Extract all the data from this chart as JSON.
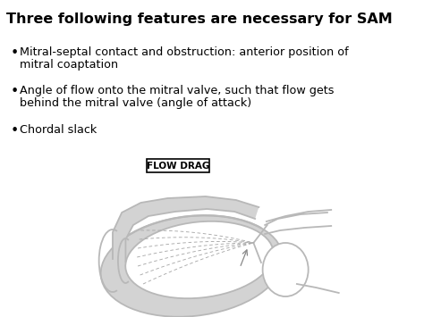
{
  "title": "Three following features are necessary for SAM",
  "bullet1_line1": "Mitral-septal contact and obstruction: anterior position of",
  "bullet1_line2": "mitral coaptation",
  "bullet2_line1": "Angle of flow onto the mitral valve, such that flow gets",
  "bullet2_line2": "behind the mitral valve (angle of attack)",
  "bullet3": "Chordal slack",
  "flow_drag_label": "FLOW DRAG",
  "bg_color": "#ffffff",
  "text_color": "#000000",
  "title_fontsize": 11.5,
  "body_fontsize": 9.2,
  "diagram_gray": "#b8b8b8",
  "diagram_fill": "#d3d3d3",
  "flow_line_color": "#aaaaaa"
}
